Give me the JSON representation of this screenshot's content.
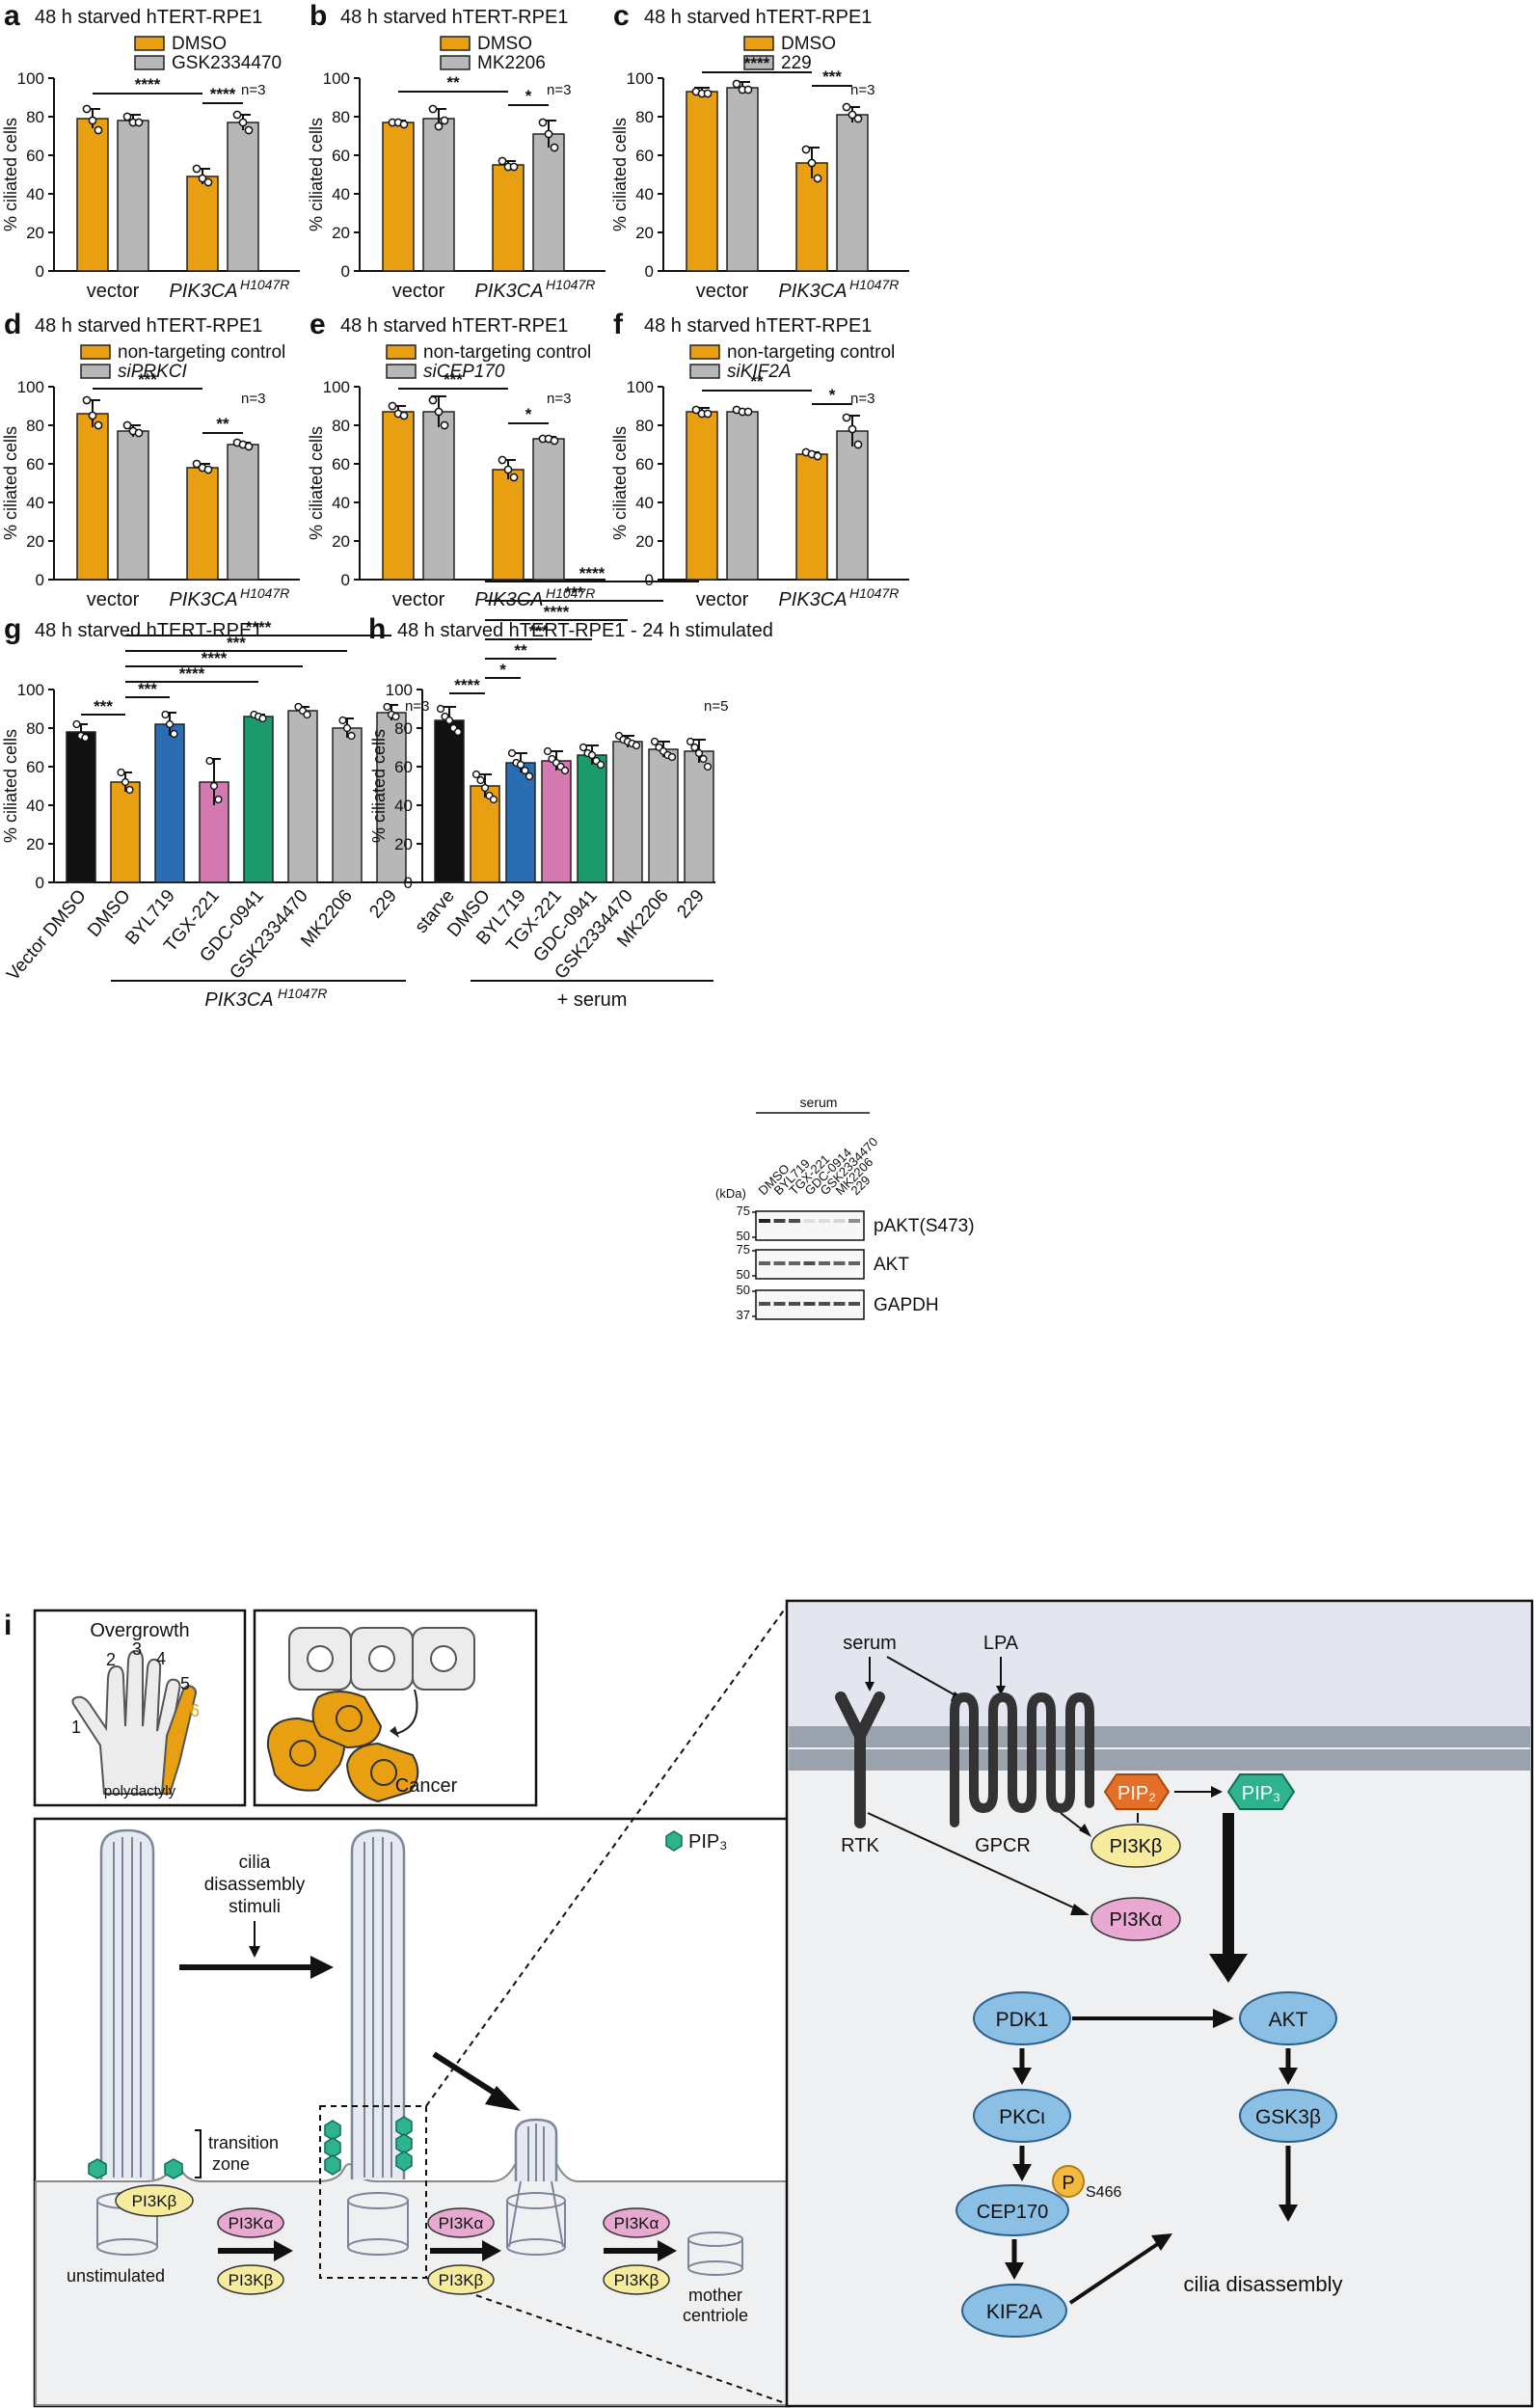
{
  "colors": {
    "orange": "#e8a012",
    "gray": "#b7b7b7",
    "black": "#111111",
    "blue": "#2a6db2",
    "pink": "#d57ab0",
    "green": "#1d9a6c",
    "pill_blue": "#8bbfe4",
    "pill_pink": "#e9a8d2",
    "pill_yellow": "#f7ec9e",
    "pip3": "#2fb38f",
    "pip2": "#e47028",
    "membrane": "#9aa3ad",
    "panel_bg": "#eef0f2",
    "sky": "#e3e6ef"
  },
  "panels": [
    {
      "id": "a",
      "letter": "a",
      "title": "48 h starved hTERT-RPE1",
      "legend": [
        "DMSO",
        "GSK2334470"
      ],
      "legend_italic": [
        false,
        false
      ],
      "n": "n=3",
      "ylabel": "% ciliated  cells",
      "yticks": [
        "0",
        "20",
        "40",
        "60",
        "80",
        "100"
      ],
      "ymax": 100,
      "groups": [
        {
          "label": "vector",
          "italic": false,
          "sup": ""
        },
        {
          "label": "PIK3CA",
          "italic": true,
          "sup": "H1047R"
        }
      ],
      "bars": [
        {
          "v": 79,
          "e": 5,
          "pts": [
            84,
            78,
            73
          ]
        },
        {
          "v": 78,
          "e": 3,
          "pts": [
            80,
            77,
            77
          ]
        },
        {
          "v": 49,
          "e": 4,
          "pts": [
            53,
            48,
            46
          ]
        },
        {
          "v": 77,
          "e": 4,
          "pts": [
            81,
            77,
            73
          ]
        }
      ],
      "sig": [
        {
          "from": 0,
          "to": 2,
          "label": "****",
          "y": 92
        },
        {
          "from": 2,
          "to": 3,
          "label": "****",
          "y": 87
        }
      ]
    },
    {
      "id": "b",
      "letter": "b",
      "title": "48 h starved hTERT-RPE1",
      "legend": [
        "DMSO",
        "MK2206"
      ],
      "legend_italic": [
        false,
        false
      ],
      "n": "n=3",
      "ylabel": "% ciliated  cells",
      "yticks": [
        "0",
        "20",
        "40",
        "60",
        "80",
        "100"
      ],
      "ymax": 100,
      "groups": [
        {
          "label": "vector",
          "italic": false,
          "sup": ""
        },
        {
          "label": "PIK3CA",
          "italic": true,
          "sup": "H1047R"
        }
      ],
      "bars": [
        {
          "v": 77,
          "e": 1,
          "pts": [
            77,
            77,
            76
          ]
        },
        {
          "v": 79,
          "e": 5,
          "pts": [
            84,
            75,
            78
          ]
        },
        {
          "v": 55,
          "e": 2,
          "pts": [
            57,
            54,
            54
          ]
        },
        {
          "v": 71,
          "e": 7,
          "pts": [
            77,
            71,
            64
          ]
        }
      ],
      "sig": [
        {
          "from": 0,
          "to": 2,
          "label": "**",
          "y": 93
        },
        {
          "from": 2,
          "to": 3,
          "label": "*",
          "y": 86
        }
      ]
    },
    {
      "id": "c",
      "letter": "c",
      "title": "48 h starved hTERT-RPE1",
      "legend": [
        "DMSO",
        "229"
      ],
      "legend_italic": [
        false,
        false
      ],
      "n": "n=3",
      "ylabel": "% ciliated  cells",
      "yticks": [
        "0",
        "20",
        "40",
        "60",
        "80",
        "100"
      ],
      "ymax": 100,
      "groups": [
        {
          "label": "vector",
          "italic": false,
          "sup": ""
        },
        {
          "label": "PIK3CA",
          "italic": true,
          "sup": "H1047R"
        }
      ],
      "bars": [
        {
          "v": 93,
          "e": 2,
          "pts": [
            93,
            92,
            92
          ]
        },
        {
          "v": 95,
          "e": 3,
          "pts": [
            97,
            94,
            94
          ]
        },
        {
          "v": 56,
          "e": 8,
          "pts": [
            63,
            56,
            48
          ]
        },
        {
          "v": 81,
          "e": 4,
          "pts": [
            85,
            81,
            79
          ]
        }
      ],
      "sig": [
        {
          "from": 0,
          "to": 2,
          "label": "****",
          "y": 103
        },
        {
          "from": 2,
          "to": 3,
          "label": "***",
          "y": 96
        }
      ]
    },
    {
      "id": "d",
      "letter": "d",
      "title": "48 h starved hTERT-RPE1",
      "legend": [
        "non-targeting control",
        "siPRKCI"
      ],
      "legend_italic": [
        false,
        true
      ],
      "n": "n=3",
      "ylabel": "% ciliated  cells",
      "yticks": [
        "0",
        "20",
        "40",
        "60",
        "80",
        "100"
      ],
      "ymax": 100,
      "groups": [
        {
          "label": "vector",
          "italic": false,
          "sup": ""
        },
        {
          "label": "PIK3CA",
          "italic": true,
          "sup": "H1047R"
        }
      ],
      "bars": [
        {
          "v": 86,
          "e": 7,
          "pts": [
            93,
            85,
            80
          ]
        },
        {
          "v": 77,
          "e": 3,
          "pts": [
            80,
            77,
            76
          ]
        },
        {
          "v": 58,
          "e": 2,
          "pts": [
            60,
            58,
            57
          ]
        },
        {
          "v": 70,
          "e": 1,
          "pts": [
            71,
            70,
            69
          ]
        }
      ],
      "sig": [
        {
          "from": 0,
          "to": 2,
          "label": "***",
          "y": 99
        },
        {
          "from": 2,
          "to": 3,
          "label": "**",
          "y": 76
        }
      ]
    },
    {
      "id": "e",
      "letter": "e",
      "title": "48 h starved hTERT-RPE1",
      "legend": [
        "non-targeting control",
        "siCEP170"
      ],
      "legend_italic": [
        false,
        true
      ],
      "n": "n=3",
      "ylabel": "% ciliated  cells",
      "yticks": [
        "0",
        "20",
        "40",
        "60",
        "80",
        "100"
      ],
      "ymax": 100,
      "groups": [
        {
          "label": "vector",
          "italic": false,
          "sup": ""
        },
        {
          "label": "PIK3CA",
          "italic": true,
          "sup": "H1047R"
        }
      ],
      "bars": [
        {
          "v": 87,
          "e": 3,
          "pts": [
            90,
            86,
            85
          ]
        },
        {
          "v": 87,
          "e": 8,
          "pts": [
            93,
            87,
            80
          ]
        },
        {
          "v": 57,
          "e": 5,
          "pts": [
            62,
            57,
            53
          ]
        },
        {
          "v": 73,
          "e": 1,
          "pts": [
            73,
            73,
            72
          ]
        }
      ],
      "sig": [
        {
          "from": 0,
          "to": 2,
          "label": "***",
          "y": 99
        },
        {
          "from": 2,
          "to": 3,
          "label": "*",
          "y": 81
        }
      ]
    },
    {
      "id": "f",
      "letter": "f",
      "title": "48 h starved hTERT-RPE1",
      "legend": [
        "non-targeting control",
        "siKIF2A"
      ],
      "legend_italic": [
        false,
        true
      ],
      "n": "n=3",
      "ylabel": "% ciliated  cells",
      "yticks": [
        "0",
        "20",
        "40",
        "60",
        "80",
        "100"
      ],
      "ymax": 100,
      "groups": [
        {
          "label": "vector",
          "italic": false,
          "sup": ""
        },
        {
          "label": "PIK3CA",
          "italic": true,
          "sup": "H1047R"
        }
      ],
      "bars": [
        {
          "v": 87,
          "e": 2,
          "pts": [
            88,
            86,
            86
          ]
        },
        {
          "v": 87,
          "e": 1,
          "pts": [
            88,
            87,
            87
          ]
        },
        {
          "v": 65,
          "e": 1,
          "pts": [
            66,
            65,
            64
          ]
        },
        {
          "v": 77,
          "e": 8,
          "pts": [
            84,
            78,
            70
          ]
        }
      ],
      "sig": [
        {
          "from": 0,
          "to": 2,
          "label": "**",
          "y": 98
        },
        {
          "from": 2,
          "to": 3,
          "label": "*",
          "y": 91
        }
      ]
    }
  ],
  "panel_g": {
    "letter": "g",
    "title": "48 h starved hTERT-RPE1",
    "n": "n=3",
    "ylabel": "% ciliated  cells",
    "yticks": [
      "0",
      "20",
      "40",
      "60",
      "80",
      "100"
    ],
    "ymax": 100,
    "categories": [
      "Vector DMSO",
      "DMSO",
      "BYL719",
      "TGX-221",
      "GDC-0941",
      "GSK2334470",
      "MK2206",
      "229"
    ],
    "colors": [
      "black",
      "orange",
      "blue",
      "pink",
      "green",
      "gray",
      "gray",
      "gray"
    ],
    "values": [
      78,
      52,
      82,
      52,
      86,
      89,
      80,
      88
    ],
    "errs": [
      4,
      5,
      6,
      12,
      1,
      2,
      5,
      4
    ],
    "pts": [
      [
        82,
        76,
        75
      ],
      [
        57,
        52,
        48
      ],
      [
        87,
        82,
        77
      ],
      [
        63,
        50,
        43
      ],
      [
        87,
        86,
        85
      ],
      [
        91,
        89,
        87
      ],
      [
        84,
        80,
        76
      ],
      [
        91,
        87,
        86
      ]
    ],
    "sig": [
      {
        "from": 0,
        "to": 1,
        "label": "***",
        "y": 87
      },
      {
        "from": 1,
        "to": 2,
        "label": "***",
        "y": 96
      },
      {
        "from": 1,
        "to": 4,
        "label": "****",
        "y": 104
      },
      {
        "from": 1,
        "to": 5,
        "label": "****",
        "y": 112
      },
      {
        "from": 1,
        "to": 6,
        "label": "***",
        "y": 120
      },
      {
        "from": 1,
        "to": 7,
        "label": "****",
        "y": 128
      }
    ],
    "bottom_label": "PIK3CA",
    "bottom_sup": "H1047R"
  },
  "panel_h": {
    "letter": "h",
    "title": "48 h starved hTERT-RPE1 - 24 h stimulated",
    "n": "n=5",
    "ylabel": "% ciliated  cells",
    "yticks": [
      "0",
      "20",
      "40",
      "60",
      "80",
      "100"
    ],
    "ymax": 100,
    "categories": [
      "starve",
      "DMSO",
      "BYL719",
      "TGX-221",
      "GDC-0941",
      "GSK2334470",
      "MK2206",
      "229"
    ],
    "colors": [
      "black",
      "orange",
      "blue",
      "pink",
      "green",
      "gray",
      "gray",
      "gray"
    ],
    "values": [
      84,
      50,
      62,
      63,
      66,
      73,
      69,
      68
    ],
    "errs": [
      7,
      6,
      5,
      5,
      5,
      3,
      4,
      6
    ],
    "pts": [
      [
        90,
        86,
        84,
        80,
        78
      ],
      [
        56,
        53,
        49,
        45,
        43
      ],
      [
        67,
        62,
        61,
        58,
        55
      ],
      [
        68,
        64,
        62,
        60,
        58
      ],
      [
        70,
        67,
        66,
        63,
        61
      ],
      [
        76,
        74,
        73,
        72,
        71
      ],
      [
        73,
        70,
        68,
        66,
        65
      ],
      [
        73,
        70,
        67,
        64,
        60
      ]
    ],
    "sig": [
      {
        "from": 0,
        "to": 1,
        "label": "****",
        "y": 98
      },
      {
        "from": 1,
        "to": 2,
        "label": "*",
        "y": 106
      },
      {
        "from": 1,
        "to": 3,
        "label": "**",
        "y": 116
      },
      {
        "from": 1,
        "to": 4,
        "label": "***",
        "y": 126
      },
      {
        "from": 1,
        "to": 5,
        "label": "****",
        "y": 136
      },
      {
        "from": 1,
        "to": 6,
        "label": "***",
        "y": 146
      },
      {
        "from": 1,
        "to": 7,
        "label": "****",
        "y": 156
      }
    ],
    "bottom_label": "+ serum"
  },
  "western": {
    "header": "serum",
    "kda": "(kDa)",
    "lanes": [
      "DMSO",
      "BYL719",
      "TGX-221",
      "GDC-0914",
      "GSK2334470",
      "MK2206",
      "229"
    ],
    "blots": [
      {
        "label": "pAKT(S473)",
        "markers": [
          "75",
          "50"
        ],
        "intensity": [
          1,
          0.85,
          0.8,
          0.1,
          0.12,
          0.15,
          0.5
        ]
      },
      {
        "label": "AKT",
        "markers": [
          "75",
          "50"
        ],
        "intensity": [
          0.7,
          0.7,
          0.7,
          0.8,
          0.7,
          0.7,
          0.7
        ]
      },
      {
        "label": "GAPDH",
        "markers": [
          "50",
          "37"
        ],
        "intensity": [
          0.8,
          0.8,
          0.8,
          0.85,
          0.8,
          0.8,
          0.8
        ]
      }
    ]
  },
  "panel_i": {
    "letter": "i",
    "overgrowth": "Overgrowth",
    "fingers": [
      "1",
      "2",
      "3",
      "4",
      "5",
      "6"
    ],
    "polydactyly": "polydactyly",
    "cancer": "Cancer",
    "pip3_legend": "PIP₃",
    "stimuli": [
      "cilia",
      "disassembly",
      "stimuli"
    ],
    "transition": [
      "transition",
      "zone"
    ],
    "pi3kb": "PI3Kβ",
    "pi3ka": "PI3Kα",
    "unstimulated": "unstimulated",
    "mother": [
      "mother",
      "centriole"
    ],
    "serum": "serum",
    "lpa": "LPA",
    "rtk": "RTK",
    "gpcr": "GPCR",
    "pip2": "PIP₂",
    "pip3": "PIP₃",
    "pdk1": "PDK1",
    "akt": "AKT",
    "pkc": "PKCι",
    "gsk": "GSK3β",
    "cep": "CEP170",
    "p": "P",
    "s466": "S466",
    "kif": "KIF2A",
    "disassembly": "cilia disassembly"
  }
}
